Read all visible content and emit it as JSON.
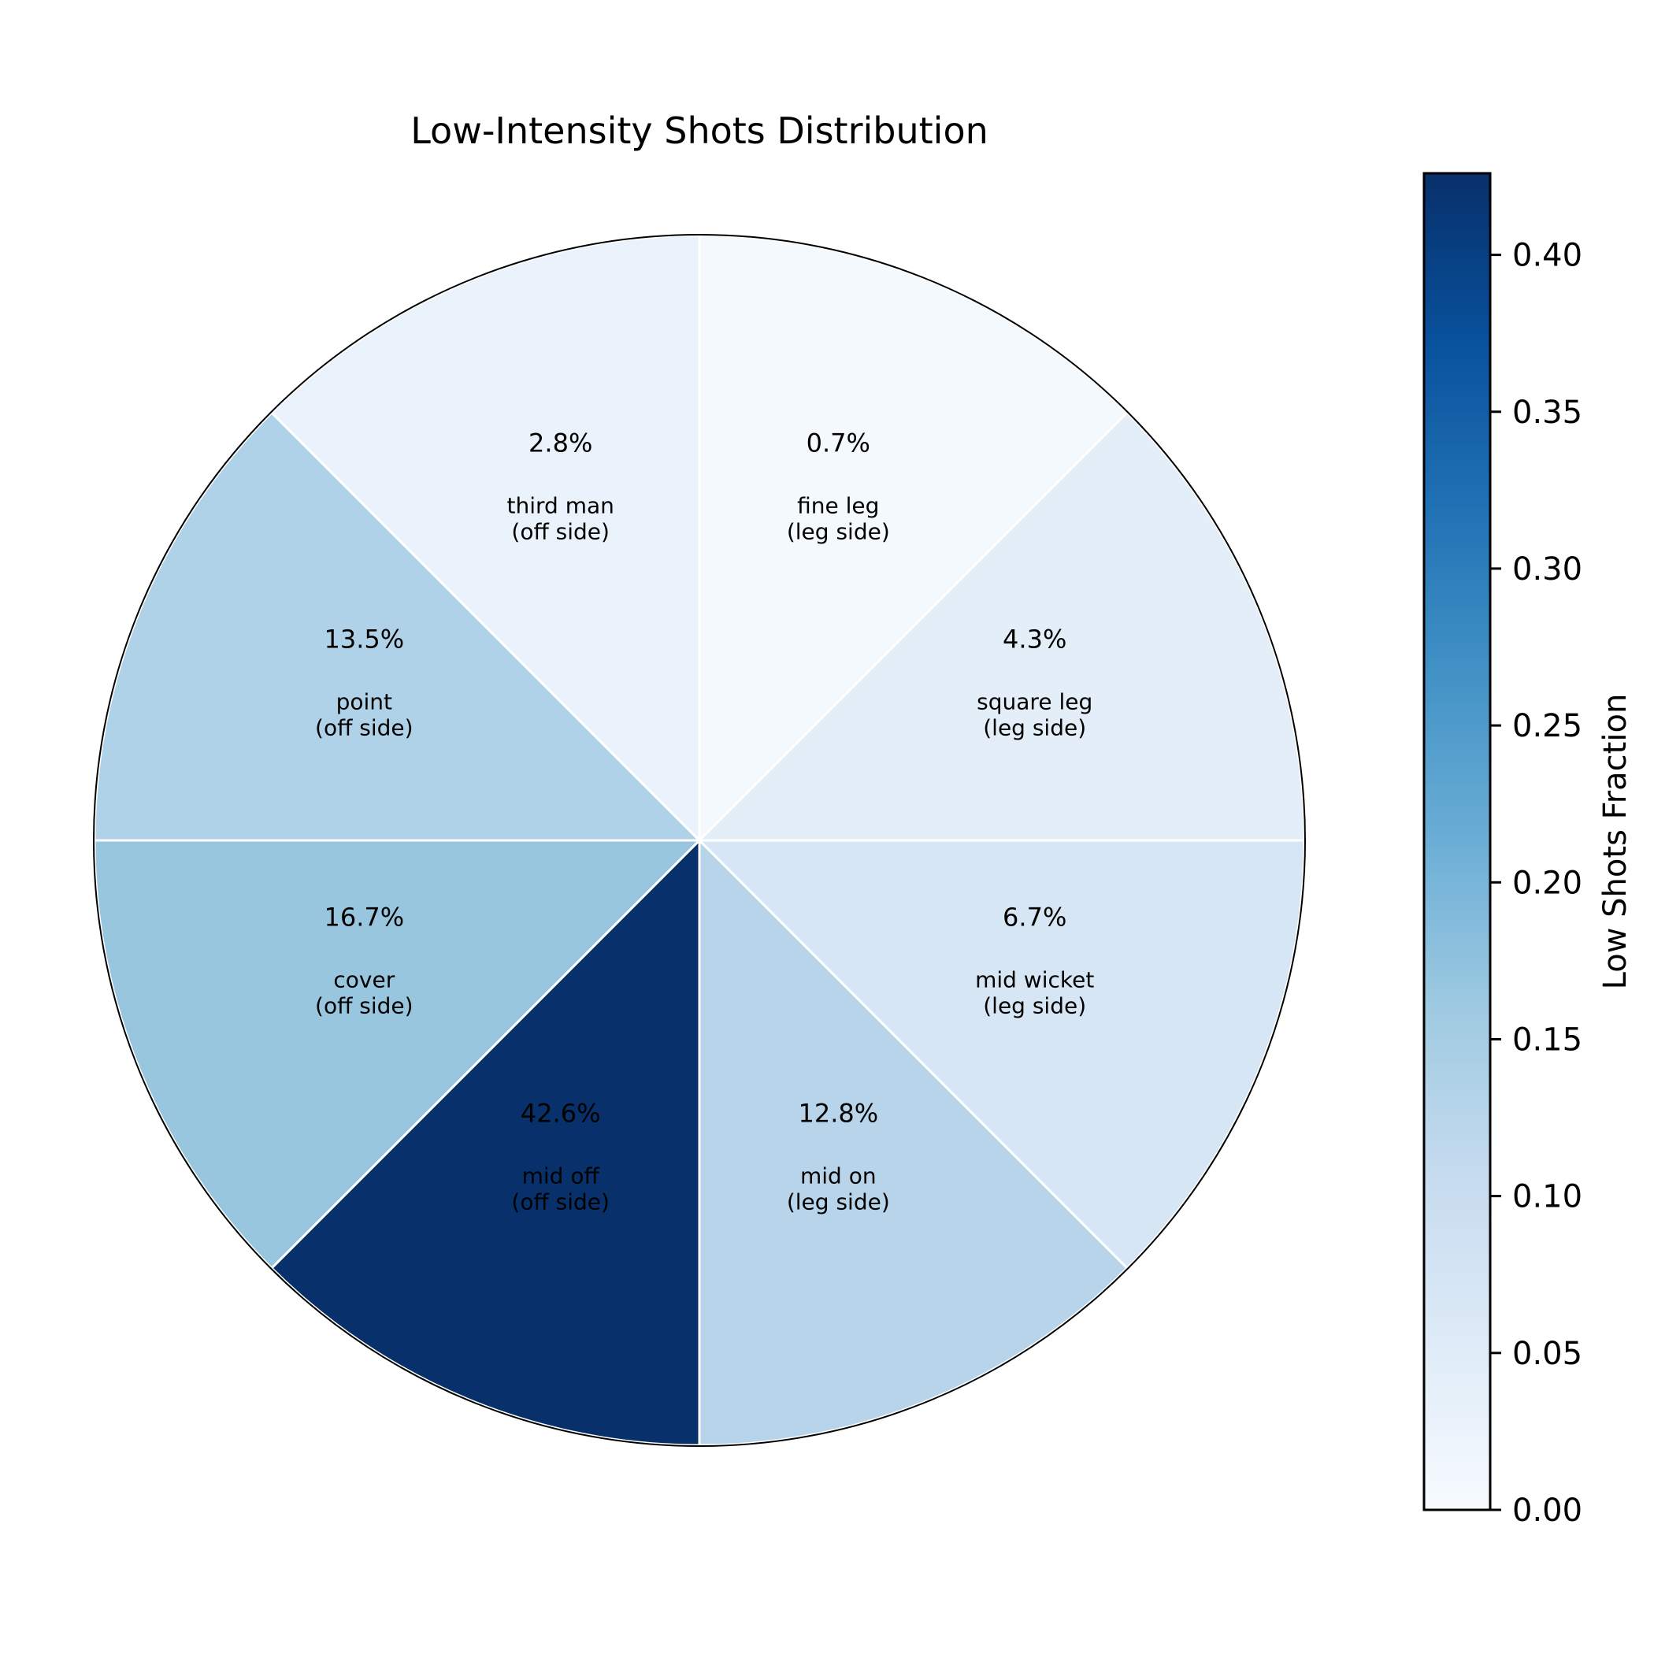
{
  "chart_data": {
    "type": "pie",
    "title": "Low-Intensity Shots Distribution",
    "slices": [
      {
        "label_line1": "fine leg",
        "label_line2": "(leg side)",
        "value": 0.007,
        "pct_text": "0.7%",
        "color": "#f4f9fe"
      },
      {
        "label_line1": "square leg",
        "label_line2": "(leg side)",
        "value": 0.043,
        "pct_text": "4.3%",
        "color": "#e3eef8"
      },
      {
        "label_line1": "mid wicket",
        "label_line2": "(leg side)",
        "value": 0.067,
        "pct_text": "6.7%",
        "color": "#d6e6f4"
      },
      {
        "label_line1": "mid on",
        "label_line2": "(leg side)",
        "value": 0.128,
        "pct_text": "12.8%",
        "color": "#b7d4ea"
      },
      {
        "label_line1": "mid off",
        "label_line2": "(off side)",
        "value": 0.426,
        "pct_text": "42.6%",
        "color": "#08306b"
      },
      {
        "label_line1": "cover",
        "label_line2": "(off side)",
        "value": 0.167,
        "pct_text": "16.7%",
        "color": "#98c6df"
      },
      {
        "label_line1": "point",
        "label_line2": "(off side)",
        "value": 0.135,
        "pct_text": "13.5%",
        "color": "#b0d2e8"
      },
      {
        "label_line1": "third man",
        "label_line2": "(off side)",
        "value": 0.028,
        "pct_text": "2.8%",
        "color": "#eaf2fb"
      }
    ],
    "colorbar": {
      "label": "Low Shots Fraction",
      "range": [
        0,
        0.426
      ],
      "ticks": [
        0.0,
        0.05,
        0.1,
        0.15,
        0.2,
        0.25,
        0.3,
        0.35,
        0.4
      ],
      "tick_labels": [
        "0.00",
        "0.05",
        "0.10",
        "0.15",
        "0.20",
        "0.25",
        "0.30",
        "0.35",
        "0.40"
      ],
      "colormap_stops": [
        "#f7fbff",
        "#deebf7",
        "#c6dbef",
        "#9ecae1",
        "#6baed6",
        "#4292c6",
        "#2171b5",
        "#08519c",
        "#08306b"
      ]
    }
  }
}
